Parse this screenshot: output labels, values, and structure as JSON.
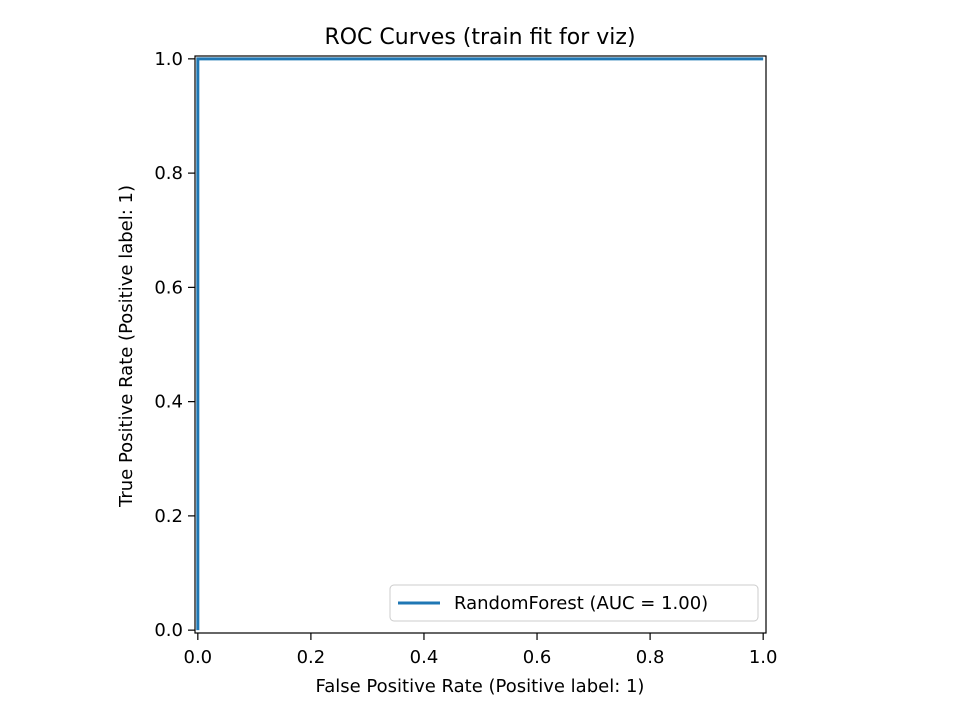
{
  "chart_data": {
    "type": "line",
    "title": "ROC Curves (train fit for viz)",
    "xlabel": "False Positive Rate (Positive label: 1)",
    "ylabel": "True Positive Rate (Positive label: 1)",
    "xlim": [
      -0.005,
      1.005
    ],
    "ylim": [
      -0.005,
      1.005
    ],
    "xticks": [
      {
        "value": 0.0,
        "label": "0.0"
      },
      {
        "value": 0.2,
        "label": "0.2"
      },
      {
        "value": 0.4,
        "label": "0.4"
      },
      {
        "value": 0.6,
        "label": "0.6"
      },
      {
        "value": 0.8,
        "label": "0.8"
      },
      {
        "value": 1.0,
        "label": "1.0"
      }
    ],
    "yticks": [
      {
        "value": 0.0,
        "label": "0.0"
      },
      {
        "value": 0.2,
        "label": "0.2"
      },
      {
        "value": 0.4,
        "label": "0.4"
      },
      {
        "value": 0.6,
        "label": "0.6"
      },
      {
        "value": 0.8,
        "label": "0.8"
      },
      {
        "value": 1.0,
        "label": "1.0"
      }
    ],
    "grid": false,
    "legend_position": "lower-right",
    "series": [
      {
        "name": "RandomForest (AUC = 1.00)",
        "color": "#1f77b4",
        "x": [
          0.0,
          0.0,
          1.0
        ],
        "y": [
          0.0,
          1.0,
          1.0
        ]
      }
    ]
  }
}
